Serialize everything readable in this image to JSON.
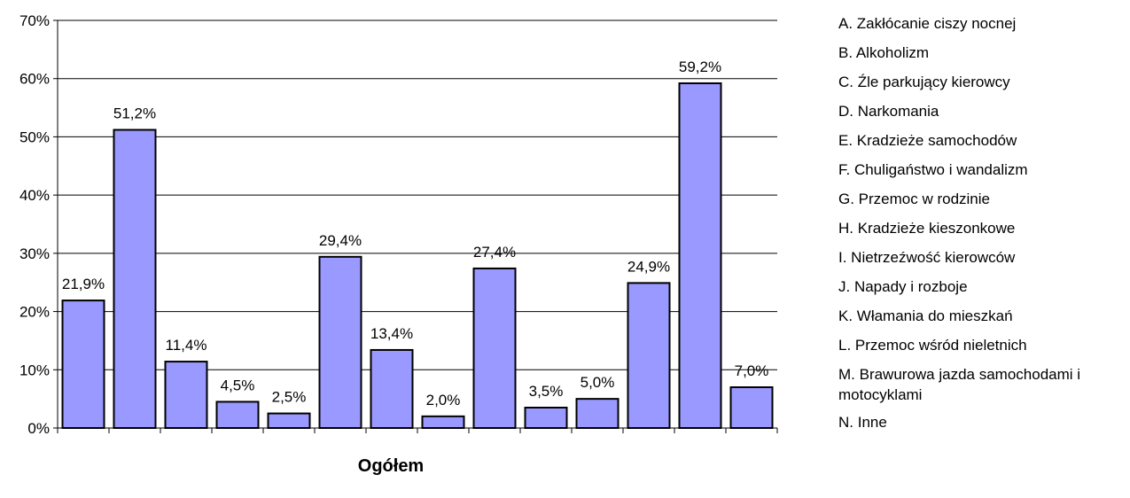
{
  "chart_data": {
    "type": "bar",
    "categories": [
      "A",
      "B",
      "C",
      "D",
      "E",
      "F",
      "G",
      "H",
      "I",
      "J",
      "K",
      "L",
      "M",
      "N"
    ],
    "values": [
      21.9,
      51.2,
      11.4,
      4.5,
      2.5,
      29.4,
      13.4,
      2.0,
      27.4,
      3.5,
      5.0,
      24.9,
      59.2,
      7.0
    ],
    "value_labels": [
      "21,9%",
      "51,2%",
      "11,4%",
      "4,5%",
      "2,5%",
      "29,4%",
      "13,4%",
      "2,0%",
      "27,4%",
      "3,5%",
      "5,0%",
      "24,9%",
      "59,2%",
      "7,0%"
    ],
    "xlabel": "Ogółem",
    "ylabel": "",
    "ylim": [
      0,
      70
    ],
    "y_ticks": [
      0,
      10,
      20,
      30,
      40,
      50,
      60,
      70
    ],
    "y_tick_labels": [
      "0%",
      "10%",
      "20%",
      "30%",
      "40%",
      "50%",
      "60%",
      "70%"
    ],
    "grid": true,
    "legend_position": "right",
    "bar_color": "#9999ff",
    "bar_edge_color": "#000000",
    "legend": [
      "A. Zakłócanie ciszy nocnej",
      "B. Alkoholizm",
      "C. Źle parkujący kierowcy",
      "D. Narkomania",
      "E. Kradzieże samochodów",
      "F. Chuligaństwo i wandalizm",
      "G. Przemoc w rodzinie",
      "H. Kradzieże kieszonkowe",
      "I. Nietrzeźwość kierowców",
      "J. Napady i rozboje",
      "K. Włamania do mieszkań",
      "L. Przemoc wśród nieletnich",
      "M. Brawurowa jazda samochodami i motocyklami",
      "N. Inne"
    ]
  }
}
